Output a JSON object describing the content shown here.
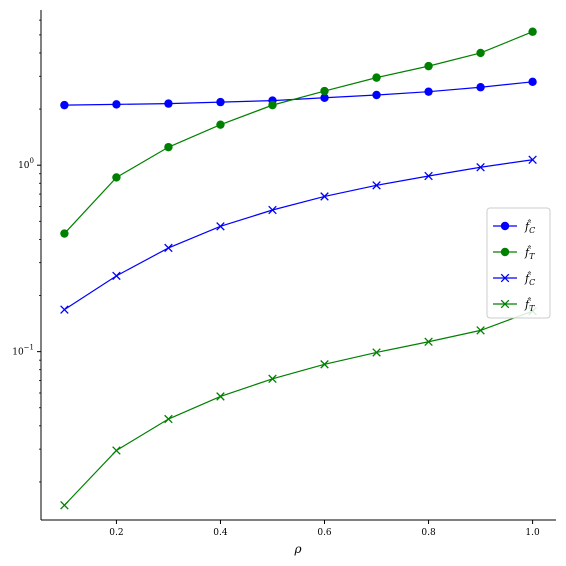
{
  "chart_data": {
    "type": "line",
    "title": "",
    "xlabel": "ρ",
    "ylabel": "",
    "yscale": "log",
    "xlim": [
      0.055,
      1.045
    ],
    "ylim": [
      0.0125,
      6.8
    ],
    "x": [
      0.1,
      0.2,
      0.3,
      0.4,
      0.5,
      0.6,
      0.7,
      0.8,
      0.9,
      1.0
    ],
    "xticks": [
      0.2,
      0.4,
      0.6,
      0.8,
      1.0
    ],
    "xtick_labels": [
      "0.2",
      "0.4",
      "0.6",
      "0.8",
      "1.0"
    ],
    "yticks": [
      {
        "value": 1,
        "base": "10",
        "exp": "0"
      },
      {
        "value": 0.1,
        "base": "10",
        "exp": "−1"
      }
    ],
    "grid": false,
    "legend_position": "right",
    "series": [
      {
        "name": "f̂C",
        "main": "f̂",
        "sub": "C",
        "color": "#0000ff",
        "marker": "circle",
        "values": [
          2.1,
          2.12,
          2.14,
          2.18,
          2.22,
          2.3,
          2.38,
          2.48,
          2.62,
          2.8
        ]
      },
      {
        "name": "f̂T",
        "main": "f̂",
        "sub": "T",
        "color": "#008000",
        "marker": "circle",
        "values": [
          0.43,
          0.86,
          1.25,
          1.65,
          2.1,
          2.5,
          2.95,
          3.4,
          4.0,
          5.2
        ]
      },
      {
        "name": "f̂C",
        "main": "f̂",
        "sub": "C",
        "color": "#0000ff",
        "marker": "x",
        "values": [
          0.168,
          0.255,
          0.36,
          0.47,
          0.575,
          0.68,
          0.78,
          0.875,
          0.975,
          1.07
        ]
      },
      {
        "name": "f̂T",
        "main": "f̂",
        "sub": "T",
        "color": "#008000",
        "marker": "x",
        "values": [
          0.015,
          0.0295,
          0.0435,
          0.0575,
          0.0715,
          0.0855,
          0.099,
          0.113,
          0.13,
          0.165
        ]
      }
    ]
  }
}
